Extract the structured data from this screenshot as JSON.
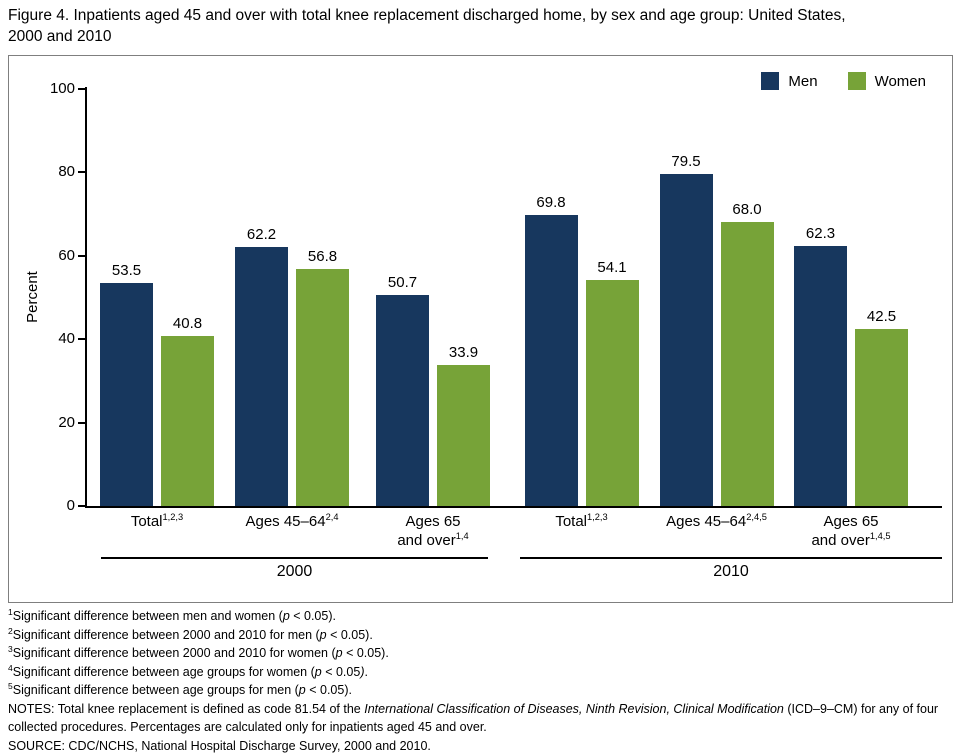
{
  "title": {
    "line1": "Figure 4. Inpatients aged 45 and over with total knee replacement discharged home, by sex and age group: United States,",
    "line2": "2000 and 2010"
  },
  "chart_data": {
    "type": "bar",
    "title": "Figure 4. Inpatients aged 45 and over with total knee replacement discharged home, by sex and age group: United States, 2000 and 2010",
    "ylabel": "Percent",
    "xlabel": "",
    "ylim": [
      0,
      100
    ],
    "yticks": [
      0,
      20,
      40,
      60,
      80,
      100
    ],
    "grid": false,
    "legend_position": "top-right",
    "categories": [
      {
        "year": "2000",
        "lines": [
          {
            "t": "Total",
            "sup": "1,2,3"
          }
        ]
      },
      {
        "year": "2000",
        "lines": [
          {
            "t": "Ages 45–64",
            "sup": "2,4"
          }
        ]
      },
      {
        "year": "2000",
        "lines": [
          {
            "t": "Ages 65",
            "sup": ""
          },
          {
            "t": "and over",
            "sup": "1,4"
          }
        ]
      },
      {
        "year": "2010",
        "lines": [
          {
            "t": "Total",
            "sup": "1,2,3"
          }
        ]
      },
      {
        "year": "2010",
        "lines": [
          {
            "t": "Ages 45–64",
            "sup": "2,4,5"
          }
        ]
      },
      {
        "year": "2010",
        "lines": [
          {
            "t": "Ages 65",
            "sup": ""
          },
          {
            "t": "and over",
            "sup": "1,4,5"
          }
        ]
      }
    ],
    "series": [
      {
        "name": "Men",
        "color": "#17375E",
        "values": [
          53.5,
          62.2,
          50.7,
          69.8,
          79.5,
          62.3
        ]
      },
      {
        "name": "Women",
        "color": "#77A338",
        "values": [
          40.8,
          56.8,
          33.9,
          54.1,
          68.0,
          42.5
        ]
      }
    ],
    "year_groups": [
      {
        "label": "2000"
      },
      {
        "label": "2010"
      }
    ]
  },
  "footnotes": [
    {
      "sup": "1",
      "segments": [
        {
          "t": "Significant difference between men and women (",
          "i": false
        },
        {
          "t": "p",
          "i": true
        },
        {
          "t": " < 0.05).",
          "i": false
        }
      ]
    },
    {
      "sup": "2",
      "segments": [
        {
          "t": "Significant difference between 2000 and 2010 for men (",
          "i": false
        },
        {
          "t": "p",
          "i": true
        },
        {
          "t": " < 0.05).",
          "i": false
        }
      ]
    },
    {
      "sup": "3",
      "segments": [
        {
          "t": "Significant difference between 2000 and 2010 for women (",
          "i": false
        },
        {
          "t": "p",
          "i": true
        },
        {
          "t": " < 0.05).",
          "i": false
        }
      ]
    },
    {
      "sup": "4",
      "segments": [
        {
          "t": "Significant difference between age groups for women (",
          "i": false
        },
        {
          "t": "p",
          "i": true
        },
        {
          "t": " < 0.05",
          "i": false
        },
        {
          "t": ")",
          "i": true
        },
        {
          "t": ".",
          "i": false
        }
      ]
    },
    {
      "sup": "5",
      "segments": [
        {
          "t": "Significant difference between age groups for men (",
          "i": false
        },
        {
          "t": "p",
          "i": true
        },
        {
          "t": " < 0.05).",
          "i": false
        }
      ]
    }
  ],
  "notes": {
    "segments": [
      {
        "t": "NOTES: Total knee replacement is defined as code 81.54 of the ",
        "i": false
      },
      {
        "t": "International Classification of Diseases, Ninth Revision, Clinical Modification",
        "i": true
      },
      {
        "t": " (ICD–9–CM) for any of four collected procedures. Percentages are calculated only for inpatients aged 45 and over.",
        "i": false
      }
    ]
  },
  "source": {
    "segments": [
      {
        "t": "SOURCE: CDC/NCHS, National Hospital Discharge Survey, 2000 and 2010.",
        "i": false
      }
    ]
  }
}
